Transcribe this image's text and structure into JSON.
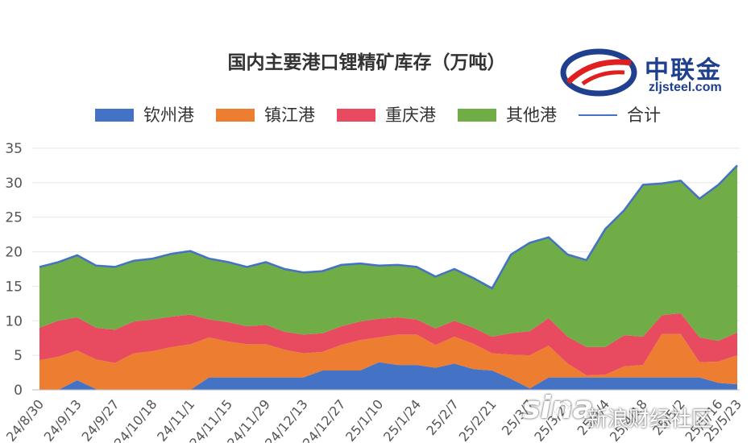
{
  "chart_data": {
    "type": "area",
    "title": "国内主要港口锂精矿库存（万吨）",
    "stacked": true,
    "ylim": [
      0,
      35
    ],
    "yticks": [
      0,
      5,
      10,
      15,
      20,
      25,
      30,
      35
    ],
    "x": [
      "24/8/30",
      "24/9/6",
      "24/9/13",
      "24/9/20",
      "24/9/27",
      "24/10/11",
      "24/10/18",
      "24/10/25",
      "24/11/1",
      "24/11/8",
      "24/11/15",
      "24/11/22",
      "24/11/29",
      "24/12/6",
      "24/12/13",
      "24/12/20",
      "24/12/27",
      "25/1/3",
      "25/1/10",
      "25/1/17",
      "25/1/24",
      "25/1/31",
      "25/2/7",
      "25/2/14",
      "25/2/21",
      "25/2/28",
      "25/3/7",
      "25/3/14",
      "25/3/21",
      "25/3/28",
      "25/4/4",
      "25/4/11",
      "25/4/18",
      "25/4/25",
      "25/5/2",
      "25/5/9",
      "25/5/16",
      "25/5/23"
    ],
    "x_tick_labels": [
      "24/8/30",
      "24/9/13",
      "24/9/27",
      "24/10/18",
      "24/11/1",
      "24/11/15",
      "24/11/29",
      "24/12/13",
      "24/12/27",
      "25/1/10",
      "25/1/24",
      "25/2/7",
      "25/2/21",
      "25/3/7",
      "25/3/21",
      "25/4/4",
      "25/4/18",
      "25/5/2",
      "25/5/16",
      "25/5/23"
    ],
    "x_tick_display": [
      "24/8/30",
      "24/9/13",
      "24/9/27",
      "24/10/18",
      "24/11/1",
      "24/11/15",
      "24/11/29",
      "24/12/13",
      "24/12/27",
      "25/1/10",
      "25/1/24",
      "25/2/7",
      "25/2/21",
      "25/3/7",
      "25/3/21",
      "25/4/4",
      "25/4/18",
      "25/5/2",
      "25/5/16",
      "25/5/23"
    ],
    "series": [
      {
        "name": "钦州港",
        "color": "#4472c4",
        "values": [
          0,
          0,
          1.4,
          0.1,
          0,
          0,
          0,
          0,
          0,
          1.8,
          1.8,
          1.8,
          1.8,
          1.8,
          1.8,
          2.8,
          2.8,
          2.8,
          4.0,
          3.6,
          3.6,
          3.2,
          3.8,
          3.0,
          2.8,
          1.6,
          0.2,
          1.8,
          1.8,
          1.8,
          1.8,
          1.8,
          1.8,
          1.8,
          1.8,
          1.8,
          1.0,
          0.8
        ]
      },
      {
        "name": "镇江港",
        "color": "#ed7d31",
        "values": [
          4.3,
          4.8,
          4.3,
          4.3,
          3.9,
          5.3,
          5.6,
          6.2,
          6.6,
          5.8,
          5.2,
          4.8,
          4.8,
          4.0,
          3.5,
          2.7,
          3.7,
          4.4,
          3.6,
          4.4,
          4.4,
          3.3,
          3.9,
          3.7,
          2.5,
          3.5,
          4.8,
          4.6,
          2.0,
          0.3,
          0.4,
          1.6,
          1.8,
          6.3,
          6.3,
          2.2,
          3.1,
          4.2
        ]
      },
      {
        "name": "重庆港",
        "color": "#e84a5f",
        "values": [
          4.7,
          5.2,
          4.8,
          4.6,
          4.8,
          4.6,
          4.6,
          4.4,
          4.3,
          2.6,
          2.8,
          2.6,
          2.8,
          2.6,
          2.7,
          2.7,
          2.7,
          2.7,
          2.7,
          2.5,
          2.2,
          2.4,
          2.3,
          2.3,
          2.4,
          3.1,
          3.5,
          4.0,
          3.9,
          4.1,
          4.0,
          4.5,
          4.1,
          2.7,
          3.0,
          3.6,
          3.0,
          3.3
        ]
      },
      {
        "name": "其他港",
        "color": "#70ad47",
        "values": [
          8.8,
          8.5,
          9.0,
          9.0,
          9.1,
          8.8,
          8.8,
          9.1,
          9.2,
          8.8,
          8.7,
          8.6,
          9.1,
          9.1,
          9.0,
          9.0,
          8.9,
          8.4,
          7.7,
          7.6,
          7.6,
          7.5,
          7.5,
          7.2,
          7.0,
          11.4,
          12.8,
          11.7,
          11.9,
          12.6,
          17.1,
          18.1,
          22.0,
          19.1,
          19.2,
          20.1,
          22.6,
          24.2
        ]
      }
    ],
    "total_line": {
      "name": "合计",
      "color": "#4472c4"
    }
  },
  "logo": {
    "name_cn": "中联金",
    "url": "zljsteel.com"
  },
  "watermark": {
    "brand": "sina",
    "text": "新浪财经社区"
  }
}
